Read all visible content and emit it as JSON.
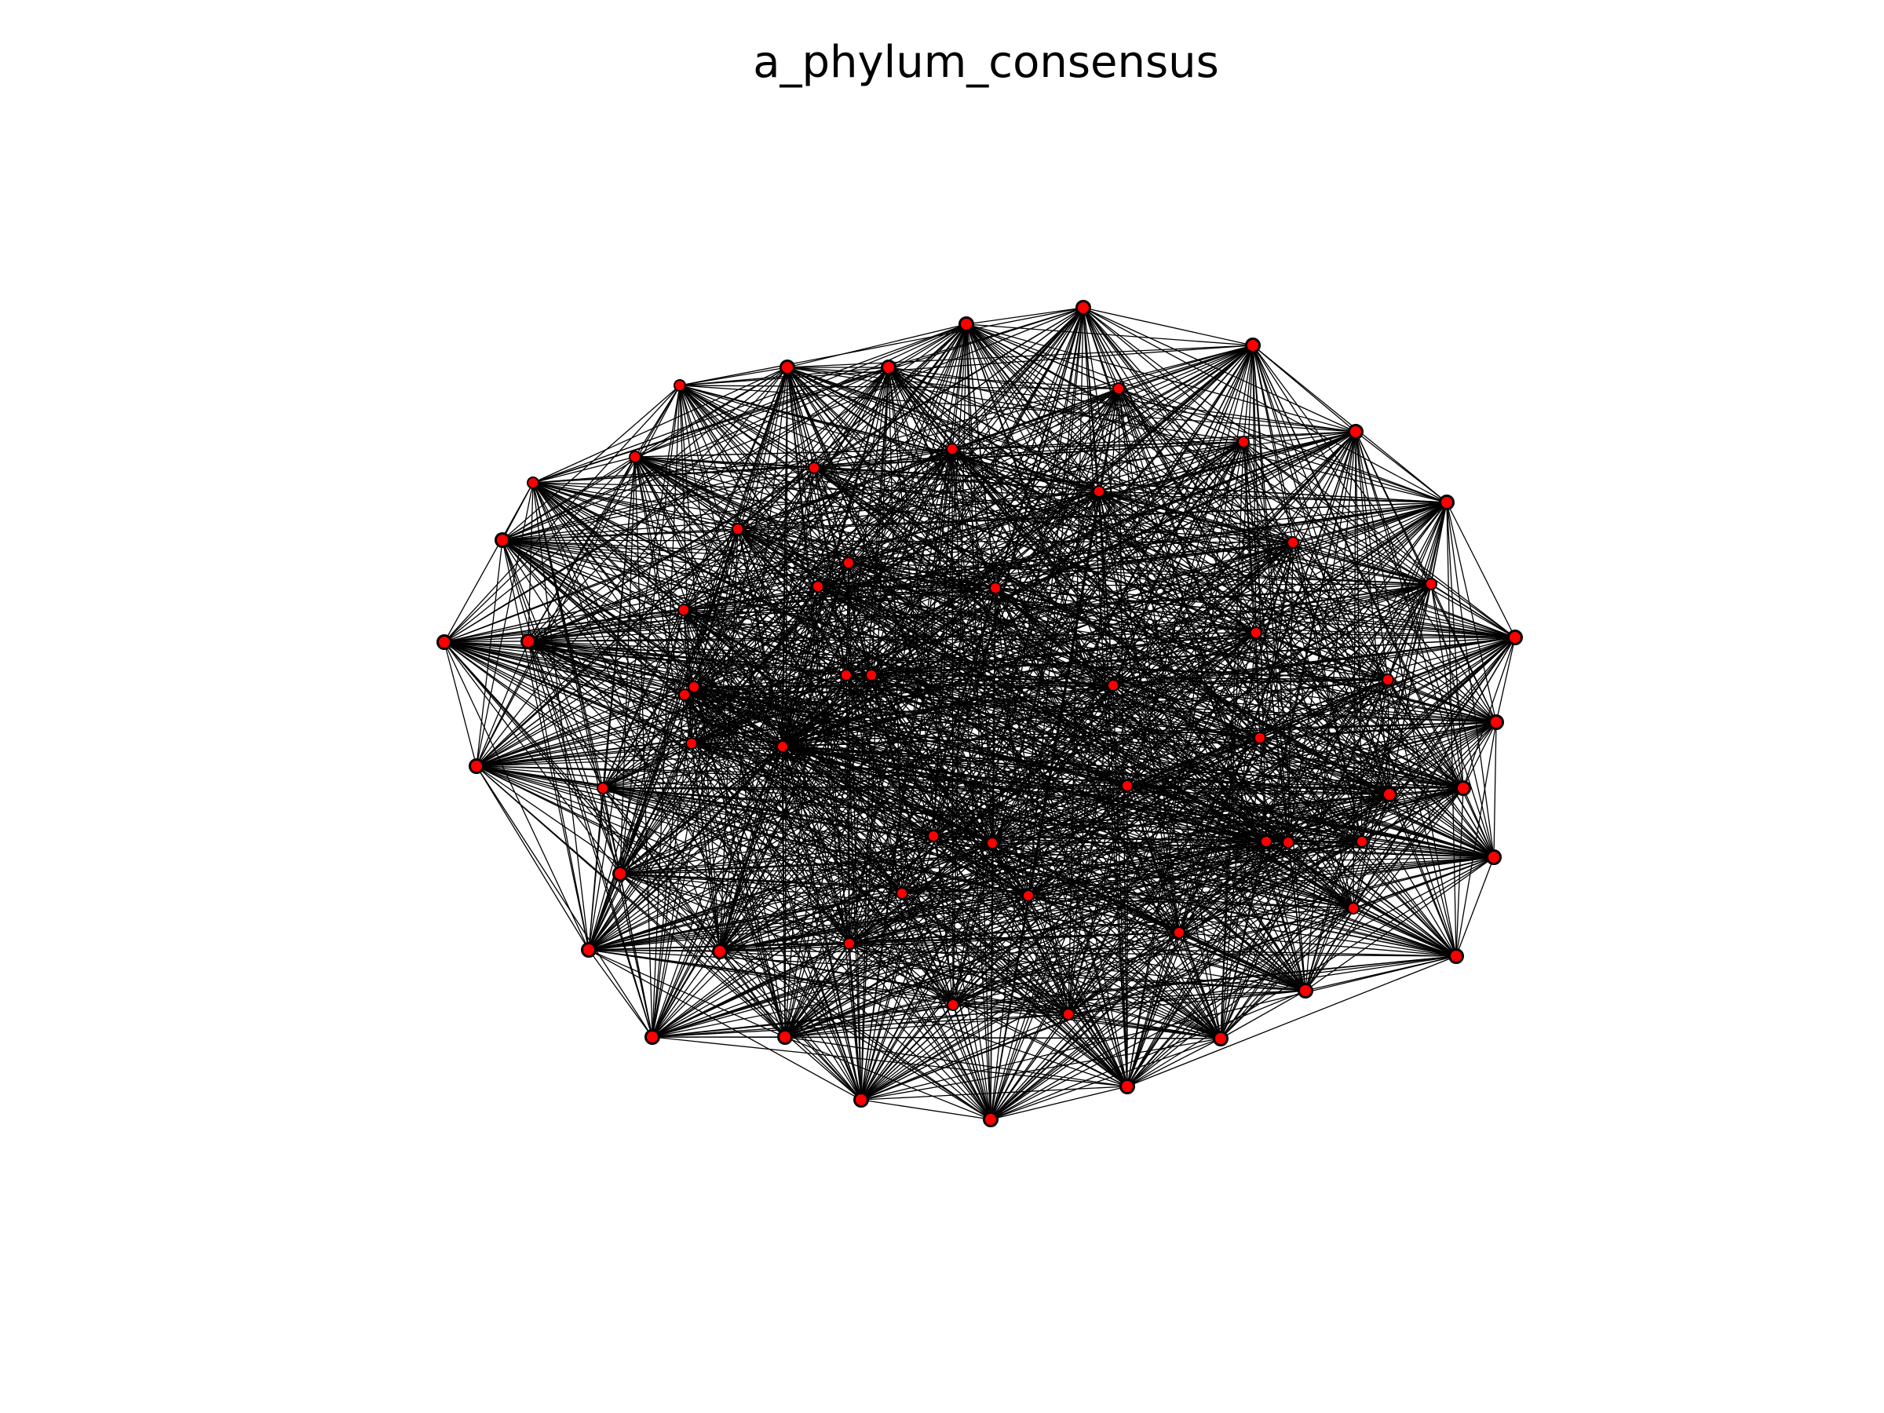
{
  "title": "a_phylum_consensus",
  "colors": {
    "background": "#ffffff",
    "node_fill": "#ff0000",
    "node_stroke": "#000000",
    "edge": "#000000",
    "title": "#000000"
  },
  "graph": {
    "node_count": 62,
    "edge_density": 0.55,
    "nodes_on_hull_enlarged": true
  }
}
